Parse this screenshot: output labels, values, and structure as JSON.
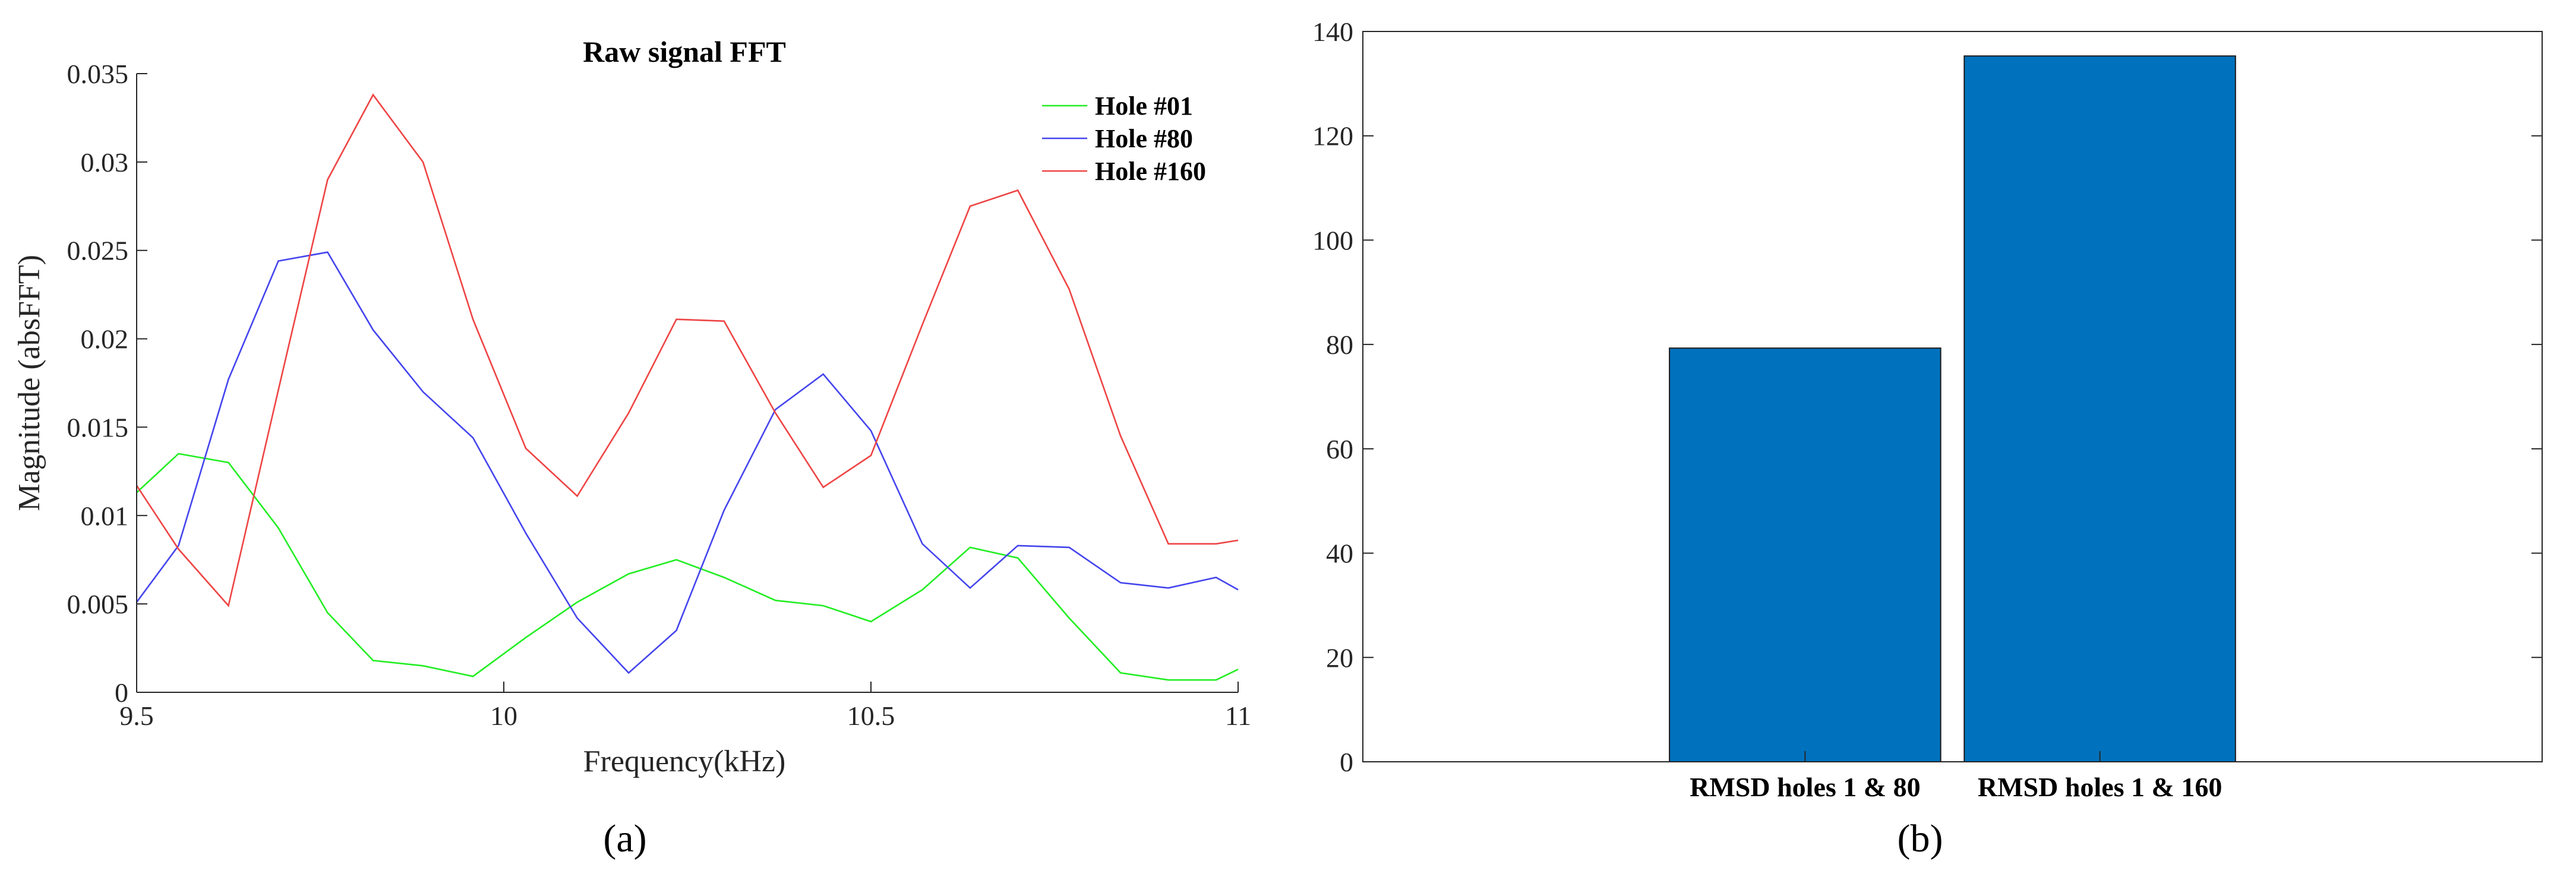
{
  "chart_data": [
    {
      "type": "line",
      "title": "Raw signal FFT",
      "xlabel": "Frequency(kHz)",
      "ylabel": "Magnitude (absFFT)",
      "xlim": [
        9.5,
        11
      ],
      "ylim": [
        0,
        0.035
      ],
      "xticks": [
        "9.5",
        "10",
        "10.5",
        "11"
      ],
      "yticks": [
        "0",
        "0.005",
        "0.01",
        "0.015",
        "0.02",
        "0.025",
        "0.03",
        "0.035"
      ],
      "legend_position": "top-right",
      "x": [
        9.5,
        9.557,
        9.625,
        9.693,
        9.76,
        9.822,
        9.89,
        9.958,
        10.03,
        10.1,
        10.17,
        10.235,
        10.3,
        10.37,
        10.435,
        10.5,
        10.57,
        10.635,
        10.7,
        10.77,
        10.84,
        10.905,
        10.97,
        11.0
      ],
      "series": [
        {
          "name": "Hole #01",
          "color": "#22ee22",
          "values": [
            0.0113,
            0.0135,
            0.013,
            0.0093,
            0.0045,
            0.0018,
            0.0015,
            0.0009,
            0.0031,
            0.0051,
            0.0067,
            0.0075,
            0.0065,
            0.0052,
            0.0049,
            0.004,
            0.0058,
            0.0082,
            0.0076,
            0.0042,
            0.0011,
            0.0007,
            0.0007,
            0.0013
          ]
        },
        {
          "name": "Hole #80",
          "color": "#4444ee",
          "values": [
            0.0051,
            0.0083,
            0.0177,
            0.0244,
            0.0249,
            0.0205,
            0.017,
            0.0144,
            0.009,
            0.0042,
            0.0011,
            0.0035,
            0.0103,
            0.016,
            0.018,
            0.0148,
            0.0084,
            0.0059,
            0.0083,
            0.0082,
            0.0062,
            0.0059,
            0.0065,
            0.0058
          ]
        },
        {
          "name": "Hole #160",
          "color": "#ee4444",
          "values": [
            0.0117,
            0.0081,
            0.0049,
            0.0171,
            0.029,
            0.0338,
            0.03,
            0.0211,
            0.0138,
            0.0111,
            0.0158,
            0.0211,
            0.021,
            0.0158,
            0.0116,
            0.0134,
            0.0208,
            0.0275,
            0.0284,
            0.0228,
            0.0145,
            0.0084,
            0.0084,
            0.0086
          ]
        }
      ]
    },
    {
      "type": "bar",
      "categories": [
        "RMSD holes 1 & 80",
        "RMSD holes 1 & 160"
      ],
      "values": [
        79.3,
        135.3
      ],
      "bar_color": "#0072bd",
      "ylim": [
        0,
        140
      ],
      "yticks": [
        "0",
        "20",
        "40",
        "60",
        "80",
        "100",
        "120",
        "140"
      ],
      "grid": false
    }
  ],
  "panel_labels": {
    "a": "(a)",
    "b": "(b)"
  }
}
